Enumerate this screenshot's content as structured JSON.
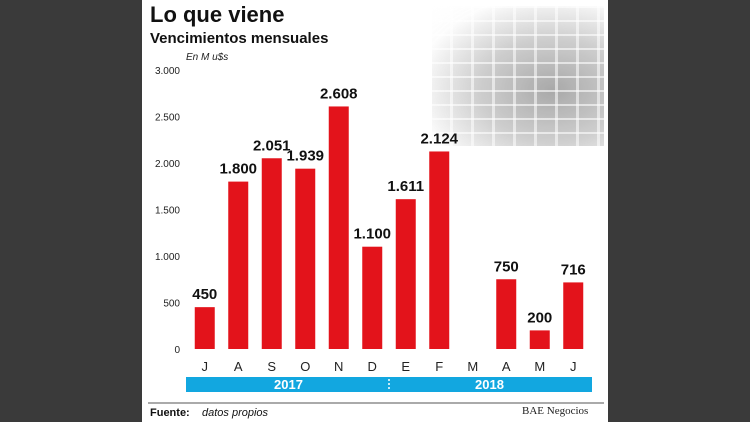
{
  "header": {
    "title": "Lo que viene",
    "subtitle": "Vencimientos mensuales",
    "unit": "En M u$s"
  },
  "footer": {
    "source_label": "Fuente:",
    "source_text": "datos propios",
    "credit": "BAE Negocios"
  },
  "colors": {
    "bar": "#e3131b",
    "year_band": "#12a7e0",
    "year_text": "#ffffff",
    "axis_text": "#222222"
  },
  "chart_data": {
    "type": "bar",
    "categories": [
      "J",
      "A",
      "S",
      "O",
      "N",
      "D",
      "E",
      "F",
      "M",
      "A",
      "M",
      "J"
    ],
    "values": [
      450,
      1800,
      2051,
      1939,
      2608,
      1100,
      1611,
      2124,
      null,
      750,
      200,
      716
    ],
    "value_labels": [
      "450",
      "1.800",
      "2.051",
      "1.939",
      "2.608",
      "1.100",
      "1.611",
      "2.124",
      "",
      "750",
      "200",
      "716"
    ],
    "ylim": [
      0,
      3000
    ],
    "yticks": [
      0,
      500,
      1000,
      1500,
      2000,
      2500,
      3000
    ],
    "ytick_labels": [
      "0",
      "500",
      "1.000",
      "1.500",
      "2.000",
      "2.500",
      "3.000"
    ],
    "year_groups": [
      {
        "label": "2017",
        "from": 0,
        "to": 5
      },
      {
        "label": "2018",
        "from": 6,
        "to": 11
      }
    ],
    "grid": false
  }
}
